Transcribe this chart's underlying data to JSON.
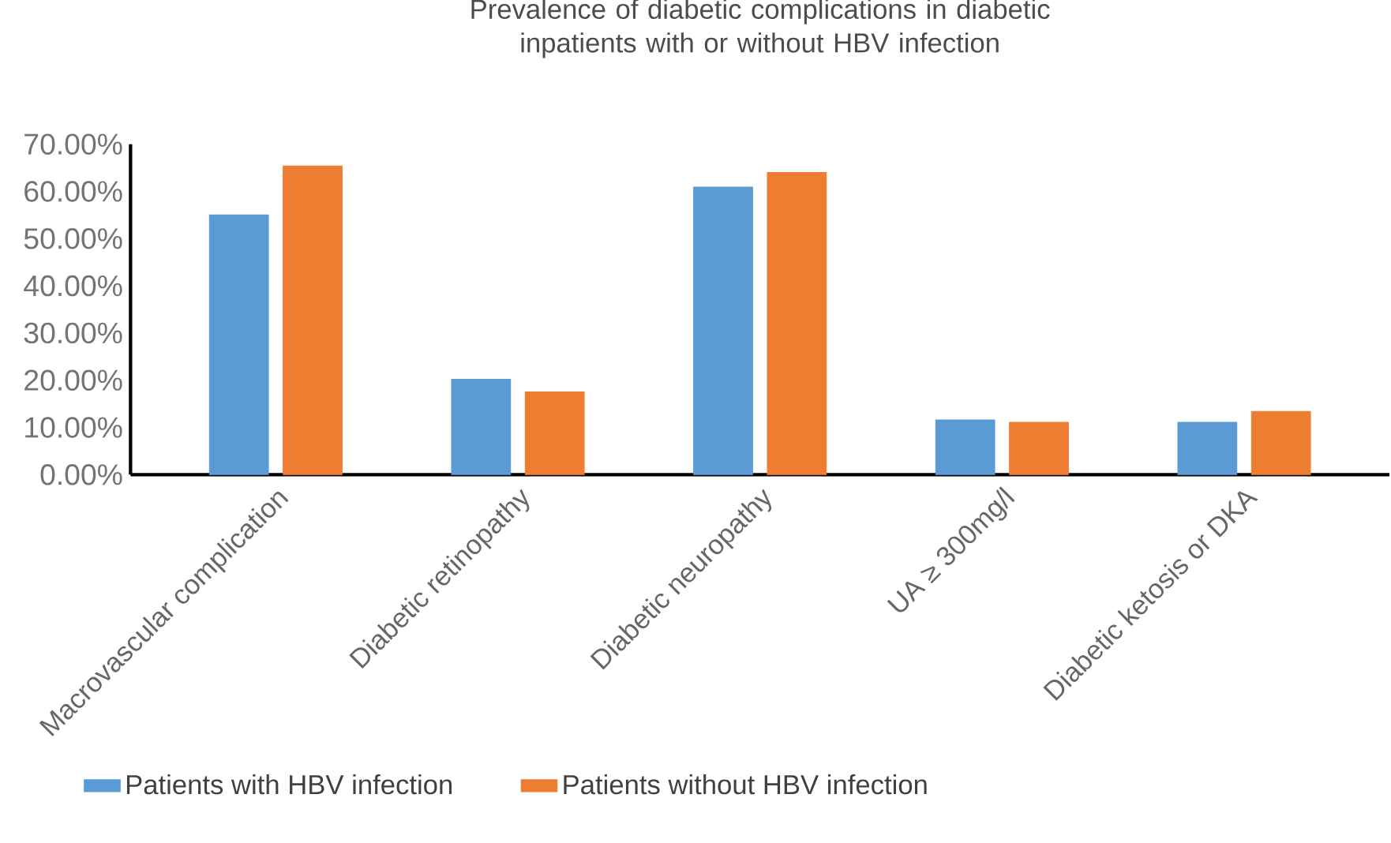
{
  "chart_data": {
    "type": "bar",
    "title": "Prevalence of diabetic complications in diabetic inpatients with or without HBV infection",
    "categories": [
      "Macrovascular complication",
      "Diabetic retinopathy",
      "Diabetic neuropathy",
      "UA ≥ 300mg/l",
      "Diabetic ketosis or DKA"
    ],
    "series": [
      {
        "name": "Patients with HBV infection",
        "color": "#5b9bd5",
        "values": [
          55.0,
          20.2,
          60.9,
          11.6,
          11.1
        ]
      },
      {
        "name": "Patients without HBV infection",
        "color": "#ed7d31",
        "values": [
          65.4,
          17.5,
          64.0,
          11.1,
          13.4
        ]
      }
    ],
    "ylim": [
      0,
      70
    ],
    "yticks": [
      {
        "value": 0,
        "label": "0.00%"
      },
      {
        "value": 10,
        "label": "10.00%"
      },
      {
        "value": 20,
        "label": "20.00%"
      },
      {
        "value": 30,
        "label": "30.00%"
      },
      {
        "value": 40,
        "label": "40.00%"
      },
      {
        "value": 50,
        "label": "50.00%"
      },
      {
        "value": 60,
        "label": "60.00%"
      },
      {
        "value": 70,
        "label": "70.00%"
      }
    ],
    "grid": false,
    "legend": "bottom"
  }
}
